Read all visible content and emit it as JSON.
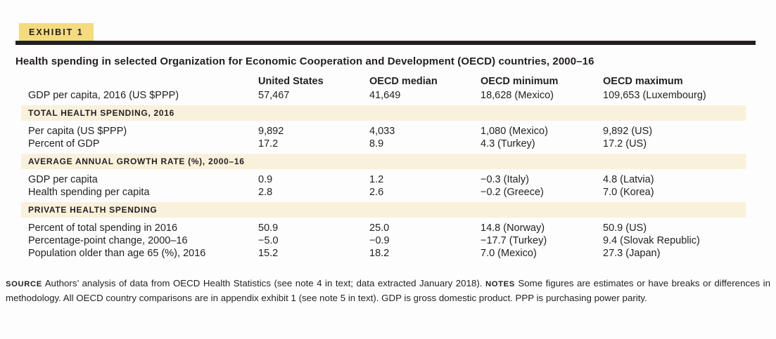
{
  "exhibit": {
    "badge": "EXHIBIT 1",
    "title": "Health spending in selected Organization for Economic Cooperation and Development (OECD) countries, 2000–16"
  },
  "table": {
    "columns": [
      "United States",
      "OECD median",
      "OECD minimum",
      "OECD maximum"
    ],
    "sections": [
      {
        "header": "",
        "rows": [
          {
            "label": "GDP per capita, 2016 (US $PPP)",
            "values": [
              "57,467",
              "41,649",
              "18,628 (Mexico)",
              "109,653 (Luxembourg)"
            ]
          }
        ]
      },
      {
        "header": "TOTAL HEALTH SPENDING, 2016",
        "rows": [
          {
            "label": "Per capita (US $PPP)",
            "values": [
              "9,892",
              "4,033",
              "1,080 (Mexico)",
              "9,892 (US)"
            ]
          },
          {
            "label": "Percent of GDP",
            "values": [
              "17.2",
              "8.9",
              "4.3 (Turkey)",
              "17.2 (US)"
            ]
          }
        ]
      },
      {
        "header": "AVERAGE ANNUAL GROWTH RATE (%), 2000–16",
        "rows": [
          {
            "label": "GDP per capita",
            "values": [
              "0.9",
              "1.2",
              "−0.3 (Italy)",
              "4.8 (Latvia)"
            ]
          },
          {
            "label": "Health spending per capita",
            "values": [
              "2.8",
              "2.6",
              "−0.2 (Greece)",
              "7.0 (Korea)"
            ]
          }
        ]
      },
      {
        "header": "PRIVATE HEALTH SPENDING",
        "rows": [
          {
            "label": "Percent of total spending in 2016",
            "values": [
              "50.9",
              "25.0",
              "14.8 (Norway)",
              "50.9 (US)"
            ]
          },
          {
            "label": "Percentage-point change, 2000–16",
            "values": [
              "−5.0",
              "−0.9",
              "−17.7 (Turkey)",
              "9.4 (Slovak Republic)"
            ]
          },
          {
            "label": "Population older than age 65 (%), 2016",
            "values": [
              "15.2",
              "18.2",
              "7.0 (Mexico)",
              "27.3 (Japan)"
            ]
          }
        ]
      }
    ]
  },
  "footer": {
    "source_label": "SOURCE",
    "source_text": "Authors’ analysis of data from OECD Health Statistics (see note 4 in text; data extracted January 2018).",
    "notes_label": "NOTES",
    "notes_text": "Some figures are estimates or have breaks or differences in methodology. All OECD country comparisons are in appendix exhibit 1 (see note 5 in text). GDP is gross domestic product. PPP is purchasing power parity."
  },
  "colors": {
    "badge_bg": "#f4db7e",
    "divider_bar": "#231f20",
    "section_band_bg": "#faf1dc",
    "text": "#231f20"
  }
}
